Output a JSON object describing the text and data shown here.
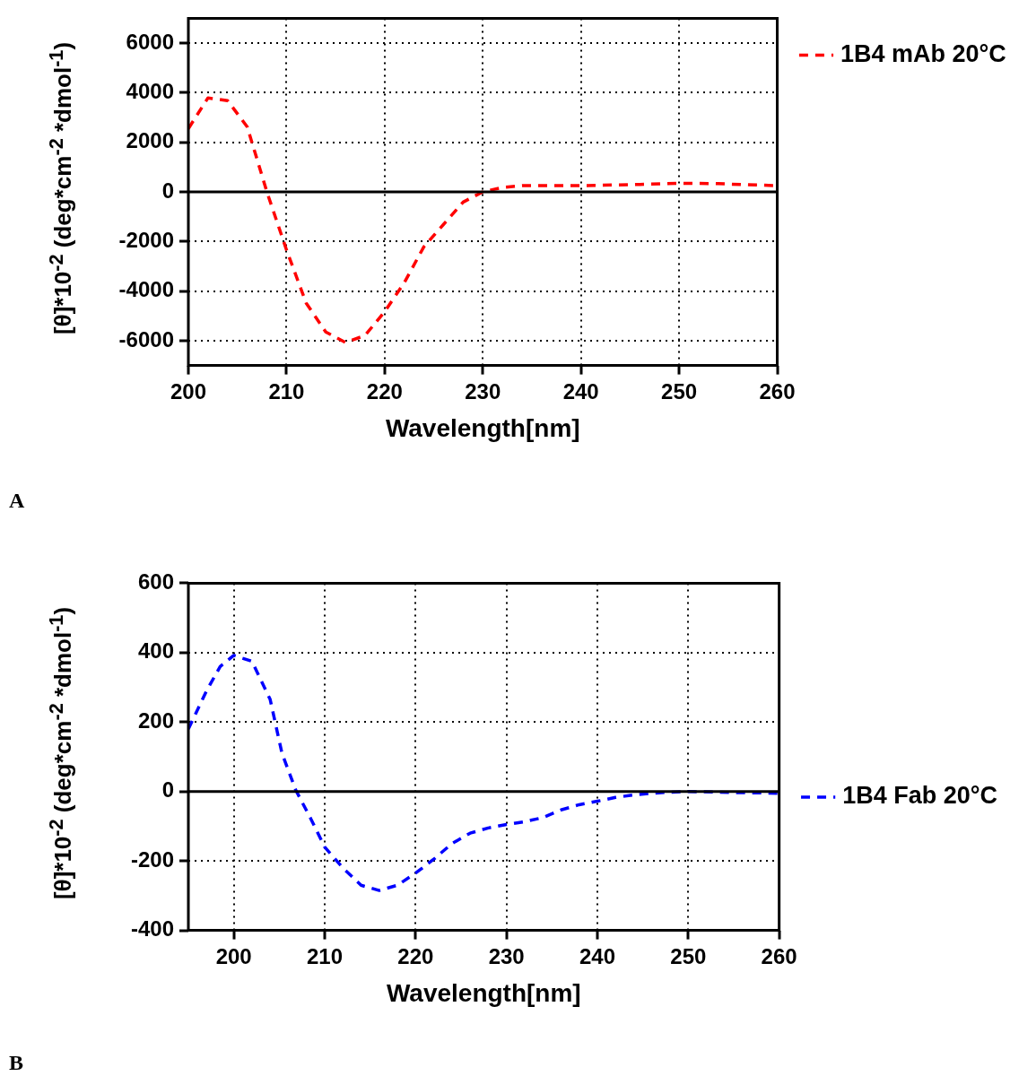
{
  "chart_data": [
    {
      "type": "line",
      "xlabel": "Wavelength[nm]",
      "ylabel": "[θ]*10$^{-2}$ (deg*cm$^{-2}$ *dmol$^{-1}$)",
      "xlim": [
        200,
        260
      ],
      "xticks": [
        200,
        210,
        220,
        230,
        240,
        250,
        260
      ],
      "ylim": [
        -7000,
        7000
      ],
      "yticks": [
        -6000,
        -4000,
        -2000,
        0,
        2000,
        4000,
        6000
      ],
      "grid": true,
      "legend": "top right",
      "line_style": "dashed",
      "marker": "none",
      "ref_lines": [
        {
          "axis": "y",
          "value": 0
        }
      ],
      "annotations": [
        "A"
      ],
      "series": [
        {
          "name": "1B4 mAb 20°C",
          "color": "#ff0000",
          "x": [
            200,
            202,
            204,
            206,
            208,
            210,
            212,
            214,
            216,
            218,
            220,
            222,
            224,
            226,
            228,
            230,
            232,
            234,
            240,
            246,
            250,
            254,
            260
          ],
          "values": [
            2550,
            3790,
            3680,
            2620,
            0,
            -2340,
            -4480,
            -5650,
            -6070,
            -5790,
            -4830,
            -3660,
            -2210,
            -1310,
            -410,
            0,
            180,
            250,
            250,
            300,
            350,
            330,
            250
          ]
        }
      ]
    },
    {
      "type": "line",
      "xlabel": "Wavelength[nm]",
      "ylabel": "[θ]*10$^{-2}$ (deg*cm$^{-2}$ *dmol$^{-1}$)",
      "xlim": [
        195,
        260
      ],
      "xticks": [
        200,
        210,
        220,
        230,
        240,
        250,
        260
      ],
      "ylim": [
        -400,
        600
      ],
      "yticks": [
        -400,
        -200,
        0,
        200,
        400,
        600
      ],
      "grid": true,
      "legend": "right",
      "line_style": "dashed",
      "marker": "none",
      "ref_lines": [
        {
          "axis": "y",
          "value": 0
        }
      ],
      "annotations": [
        "B"
      ],
      "series": [
        {
          "name": "1B4 Fab 20°C",
          "color": "#0000ff",
          "x": [
            195,
            197,
            198.5,
            200,
            202,
            204,
            205.3,
            206.8,
            208.5,
            210,
            212,
            214,
            216,
            218,
            220,
            222,
            224,
            226,
            228,
            230,
            232,
            234,
            236,
            238,
            240,
            242,
            244,
            246,
            248,
            250,
            255,
            260
          ],
          "values": [
            180,
            290,
            360,
            392,
            375,
            265,
            110,
            5,
            -80,
            -160,
            -220,
            -270,
            -285,
            -270,
            -235,
            -195,
            -150,
            -120,
            -105,
            -95,
            -87,
            -75,
            -53,
            -38,
            -28,
            -17,
            -10,
            -5,
            -2,
            0,
            -3,
            -5
          ]
        }
      ]
    }
  ]
}
